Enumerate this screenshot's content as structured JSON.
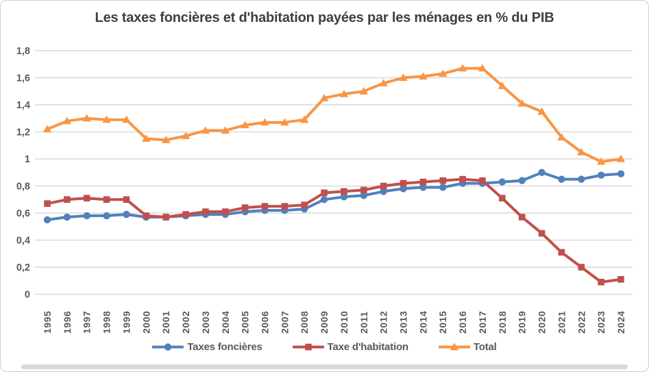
{
  "title": "Les taxes foncières et d'habitation payées par les ménages en % du PIB",
  "chart_data": {
    "type": "line",
    "title": "Les taxes foncières et d'habitation payées par les ménages en % du PIB",
    "categories": [
      "1995",
      "1996",
      "1997",
      "1998",
      "1999",
      "2000",
      "2001",
      "2002",
      "2003",
      "2004",
      "2005",
      "2006",
      "2007",
      "2008",
      "2009",
      "2010",
      "2011",
      "2012",
      "2013",
      "2014",
      "2015",
      "2016",
      "2017",
      "2018",
      "2019",
      "2020",
      "2021",
      "2022",
      "2023",
      "2024"
    ],
    "series": [
      {
        "name": "Taxes foncières",
        "color": "#4F81BD",
        "marker": "circle",
        "values": [
          0.55,
          0.57,
          0.58,
          0.58,
          0.59,
          0.57,
          0.57,
          0.58,
          0.59,
          0.59,
          0.61,
          0.62,
          0.62,
          0.63,
          0.7,
          0.72,
          0.73,
          0.76,
          0.78,
          0.79,
          0.79,
          0.82,
          0.82,
          0.83,
          0.84,
          0.9,
          0.85,
          0.85,
          0.88,
          0.89
        ]
      },
      {
        "name": "Taxe d'habitation",
        "color": "#C0504D",
        "marker": "square",
        "values": [
          0.67,
          0.7,
          0.71,
          0.7,
          0.7,
          0.58,
          0.57,
          0.59,
          0.61,
          0.61,
          0.64,
          0.65,
          0.65,
          0.66,
          0.75,
          0.76,
          0.77,
          0.8,
          0.82,
          0.83,
          0.84,
          0.85,
          0.84,
          0.71,
          0.57,
          0.45,
          0.31,
          0.2,
          0.09,
          0.11
        ]
      },
      {
        "name": "Total",
        "color": "#F79646",
        "marker": "triangle",
        "values": [
          1.22,
          1.28,
          1.3,
          1.29,
          1.29,
          1.15,
          1.14,
          1.17,
          1.21,
          1.21,
          1.25,
          1.27,
          1.27,
          1.29,
          1.45,
          1.48,
          1.5,
          1.56,
          1.6,
          1.61,
          1.63,
          1.67,
          1.67,
          1.54,
          1.41,
          1.35,
          1.16,
          1.05,
          0.98,
          1.0
        ]
      }
    ],
    "xlabel": "",
    "ylabel": "",
    "ylim": [
      0,
      1.8
    ],
    "y_tick_step": 0.2,
    "y_tick_labels": [
      "0",
      "0,2",
      "0,4",
      "0,6",
      "0,8",
      "1",
      "1,2",
      "1,4",
      "1,6",
      "1,8"
    ],
    "grid": true,
    "legend_position": "bottom"
  }
}
